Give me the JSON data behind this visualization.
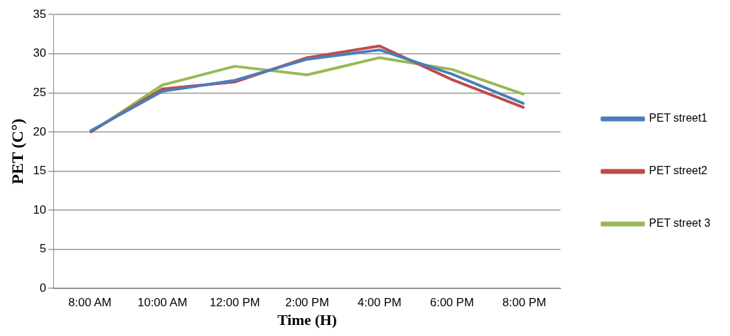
{
  "chart_data": {
    "type": "line",
    "xlabel": "Time (H)",
    "ylabel": "PET (C°)",
    "categories": [
      "8:00 AM",
      "10:00 AM",
      "12:00 PM",
      "2:00 PM",
      "4:00 PM",
      "6:00 PM",
      "8:00 PM"
    ],
    "series": [
      {
        "name": "PET street1",
        "color": "#4a7ebb",
        "values": [
          20.1,
          25.2,
          26.6,
          29.3,
          30.5,
          27.4,
          23.6
        ]
      },
      {
        "name": "PET street2",
        "color": "#be4b48",
        "values": [
          20.0,
          25.5,
          26.4,
          29.5,
          31.0,
          26.7,
          23.1
        ]
      },
      {
        "name": "PET street 3",
        "color": "#98b954",
        "values": [
          19.9,
          26.0,
          28.4,
          27.3,
          29.5,
          28.0,
          24.8
        ]
      }
    ],
    "ylim": [
      0,
      35
    ],
    "yticks": [
      0,
      5,
      10,
      15,
      20,
      25,
      30,
      35
    ],
    "grid": "y",
    "legend": "right",
    "marker": "none",
    "line_style": "solid"
  }
}
